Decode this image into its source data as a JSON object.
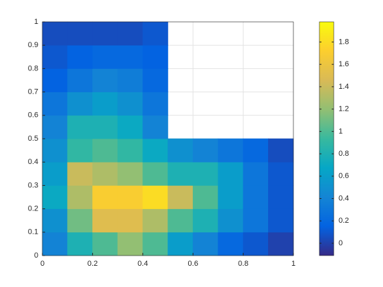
{
  "chart_data": {
    "type": "heatmap",
    "x": [
      0.05,
      0.15,
      0.25,
      0.35,
      0.45,
      0.55,
      0.65,
      0.75,
      0.85,
      0.95
    ],
    "y": [
      0.05,
      0.15,
      0.25,
      0.35,
      0.45,
      0.55,
      0.65,
      0.75,
      0.85,
      0.95
    ],
    "z": [
      [
        0.4,
        0.8,
        1.0,
        1.2,
        1.0,
        0.6,
        0.4,
        0.2,
        0.1,
        0.0
      ],
      [
        0.5,
        1.1,
        1.5,
        1.5,
        1.3,
        1.0,
        0.8,
        0.5,
        0.3,
        0.1
      ],
      [
        0.7,
        1.3,
        1.7,
        1.7,
        1.8,
        1.4,
        1.0,
        0.6,
        0.3,
        0.1
      ],
      [
        0.6,
        1.4,
        1.3,
        1.2,
        1.0,
        0.8,
        0.8,
        0.6,
        0.3,
        0.1
      ],
      [
        0.5,
        0.9,
        1.0,
        0.9,
        0.7,
        0.5,
        0.4,
        0.3,
        0.2,
        0.05
      ],
      [
        0.4,
        0.8,
        0.8,
        0.7,
        0.4,
        null,
        null,
        null,
        null,
        null
      ],
      [
        0.3,
        0.5,
        0.6,
        0.5,
        0.3,
        null,
        null,
        null,
        null,
        null
      ],
      [
        0.15,
        0.3,
        0.4,
        0.35,
        0.2,
        null,
        null,
        null,
        null,
        null
      ],
      [
        0.1,
        0.15,
        0.2,
        0.2,
        0.15,
        null,
        null,
        null,
        null,
        null
      ],
      [
        0.05,
        0.05,
        0.05,
        0.05,
        0.1,
        null,
        null,
        null,
        null,
        null
      ]
    ],
    "xlim": [
      0,
      1
    ],
    "ylim": [
      0,
      1
    ],
    "xticks": [
      0,
      0.2,
      0.4,
      0.6,
      0.8,
      1
    ],
    "yticks": [
      0,
      0.1,
      0.2,
      0.3,
      0.4,
      0.5,
      0.6,
      0.7,
      0.8,
      0.9,
      1
    ],
    "clim": [
      -0.11,
      1.98
    ],
    "cticks": [
      0,
      0.2,
      0.4,
      0.6,
      0.8,
      1,
      1.2,
      1.4,
      1.6,
      1.8
    ],
    "colormap": [
      "#352a87",
      "#0363e1",
      "#1485d4",
      "#06a7c6",
      "#38b99e",
      "#92bf73",
      "#d9ba56",
      "#fcce2e",
      "#f9fb0e"
    ],
    "grid": true
  }
}
